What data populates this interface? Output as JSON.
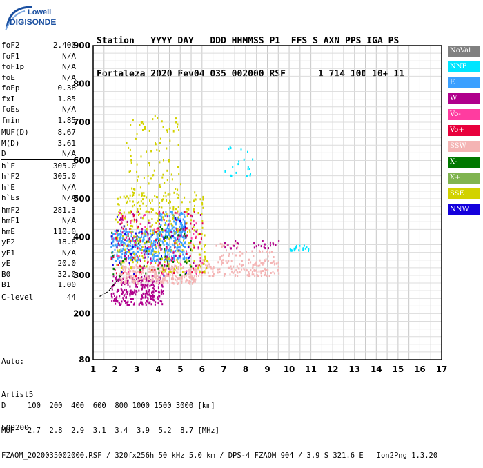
{
  "logo": {
    "line1": "Lowell",
    "line2": "DIGISONDE"
  },
  "header": {
    "row1": "Station   YYYY DAY   DDD HHMMSS P1  FFS S AXN PPS IGA PS",
    "row2": "Fortaleza 2020 Fev04 035 002000 RSF      1 714 100 10+ 11"
  },
  "params": [
    [
      {
        "k": "foF2",
        "v": "2.400"
      },
      {
        "k": "foF1",
        "v": "N/A"
      },
      {
        "k": "foF1p",
        "v": "N/A"
      },
      {
        "k": "foE",
        "v": "N/A"
      },
      {
        "k": "foEp",
        "v": "0.38"
      },
      {
        "k": "fxI",
        "v": "1.85"
      },
      {
        "k": "foEs",
        "v": "N/A"
      },
      {
        "k": "fmin",
        "v": "1.85"
      }
    ],
    [
      {
        "k": "MUF(D)",
        "v": "8.67"
      },
      {
        "k": "M(D)",
        "v": "3.61"
      },
      {
        "k": "D",
        "v": "N/A"
      }
    ],
    [
      {
        "k": "h`F",
        "v": "305.0"
      },
      {
        "k": "h`F2",
        "v": "305.0"
      },
      {
        "k": "h`E",
        "v": "N/A"
      },
      {
        "k": "h`Es",
        "v": "N/A"
      }
    ],
    [
      {
        "k": "hmF2",
        "v": "281.3"
      },
      {
        "k": "hmF1",
        "v": "N/A"
      },
      {
        "k": "hmE",
        "v": "110.0"
      },
      {
        "k": "yF2",
        "v": "18.8"
      },
      {
        "k": "yF1",
        "v": "N/A"
      },
      {
        "k": "yE",
        "v": "20.0"
      },
      {
        "k": "B0",
        "v": "32.0"
      },
      {
        "k": "B1",
        "v": "1.00"
      }
    ],
    [
      {
        "k": "C-level",
        "v": "44"
      }
    ]
  ],
  "auto": {
    "line1": "Auto:",
    "line2": "Artist5",
    "line3": "500200"
  },
  "legend": [
    {
      "label": "NoVal",
      "color": "#808080"
    },
    {
      "label": "NNE",
      "color": "#00e5ff"
    },
    {
      "label": "E",
      "color": "#3aa0ff"
    },
    {
      "label": "W",
      "color": "#b0008c"
    },
    {
      "label": "Vo-",
      "color": "#ff3ca0"
    },
    {
      "label": "Vo+",
      "color": "#e8003c"
    },
    {
      "label": "SSW",
      "color": "#f4b4b4"
    },
    {
      "label": "X-",
      "color": "#007800"
    },
    {
      "label": "X+",
      "color": "#80b450"
    },
    {
      "label": "SSE",
      "color": "#d2d200"
    },
    {
      "label": "NNW",
      "color": "#1400dc"
    }
  ],
  "footer": {
    "line1": "D     100  200  400  600  800 1000 1500 3000 [km]",
    "line2": "MUF   2.7  2.8  2.9  3.1  3.4  3.9  5.2  8.7 [MHz]",
    "line3": "FZAOM_2020035002000.RSF / 320fx256h 50 kHz 5.0 km / DPS-4 FZAOM 904 / 3.9 S 321.6 E   Ion2Png 1.3.20"
  },
  "chart_data": {
    "type": "scatter",
    "xlim": [
      1,
      17
    ],
    "ylim": [
      80,
      900
    ],
    "x_ticks": [
      1,
      2,
      3,
      4,
      5,
      6,
      7,
      8,
      9,
      10,
      11,
      12,
      13,
      14,
      15,
      16,
      17
    ],
    "y_ticks": [
      80,
      200,
      300,
      400,
      500,
      600,
      700,
      800,
      900
    ],
    "grid": true,
    "legend_position": "right",
    "clusters": [
      {
        "series": "W",
        "x": [
          1.8,
          4.2
        ],
        "y": [
          225,
          300
        ],
        "n": 260
      },
      {
        "series": "SSW",
        "x": [
          2.2,
          5.8
        ],
        "y": [
          280,
          330
        ],
        "n": 320
      },
      {
        "series": "SSW",
        "x": [
          5.8,
          9.5
        ],
        "y": [
          300,
          345
        ],
        "n": 160
      },
      {
        "series": "SSW",
        "x": [
          6.5,
          9.3
        ],
        "y": [
          350,
          390
        ],
        "n": 40
      },
      {
        "series": "E",
        "x": [
          1.8,
          5.3
        ],
        "y": [
          340,
          420
        ],
        "n": 420
      },
      {
        "series": "E",
        "x": [
          4.0,
          5.2
        ],
        "y": [
          410,
          470
        ],
        "n": 90
      },
      {
        "series": "SSE",
        "x": [
          2.0,
          6.2
        ],
        "y": [
          310,
          520
        ],
        "n": 320
      },
      {
        "series": "SSE",
        "x": [
          2.5,
          5.0
        ],
        "y": [
          500,
          720
        ],
        "n": 90
      },
      {
        "series": "Vo+",
        "x": [
          1.8,
          6.0
        ],
        "y": [
          300,
          470
        ],
        "n": 90
      },
      {
        "series": "Vo-",
        "x": [
          1.8,
          6.0
        ],
        "y": [
          300,
          470
        ],
        "n": 70
      },
      {
        "series": "W",
        "x": [
          2.0,
          6.0
        ],
        "y": [
          320,
          470
        ],
        "n": 80
      },
      {
        "series": "X-",
        "x": [
          1.8,
          5.5
        ],
        "y": [
          300,
          430
        ],
        "n": 50
      },
      {
        "series": "NNW",
        "x": [
          1.8,
          5.5
        ],
        "y": [
          300,
          460
        ],
        "n": 40
      },
      {
        "series": "NNE",
        "x": [
          7.0,
          8.3
        ],
        "y": [
          560,
          640
        ],
        "n": 20
      },
      {
        "series": "NNE",
        "x": [
          10.0,
          10.9
        ],
        "y": [
          365,
          380
        ],
        "n": 20
      },
      {
        "series": "W",
        "x": [
          7.0,
          9.5
        ],
        "y": [
          370,
          395
        ],
        "n": 25
      }
    ],
    "trace": {
      "x": [
        1.3,
        1.7,
        2.0,
        2.3
      ],
      "y": [
        245,
        258,
        280,
        300
      ]
    }
  }
}
